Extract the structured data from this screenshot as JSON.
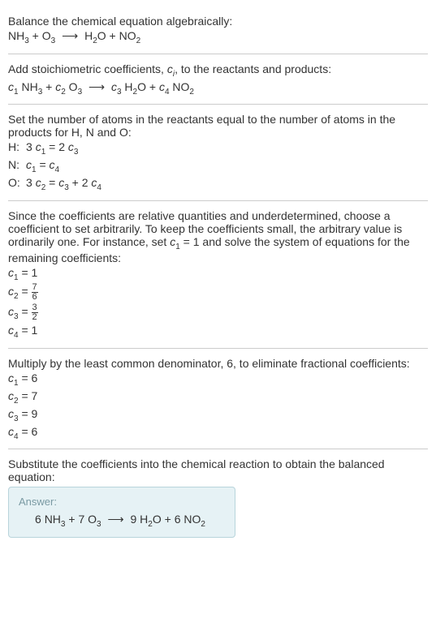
{
  "section1": {
    "text": "Balance the chemical equation algebraically:",
    "equation": {
      "lhs1_base": "NH",
      "lhs1_sub": "3",
      "plus": " + ",
      "lhs2_base": "O",
      "lhs2_sub": "3",
      "arrow": "⟶",
      "rhs1_base": "H",
      "rhs1_sub": "2",
      "rhs1_suffix": "O",
      "rhs2_base": "NO",
      "rhs2_sub": "2"
    }
  },
  "section2": {
    "text_pre": "Add stoichiometric coefficients, ",
    "ci_base": "c",
    "ci_sub": "i",
    "text_post": ", to the reactants and products:",
    "eq": {
      "c1_base": "c",
      "c1_sub": "1",
      "sp1": " NH",
      "sp1_sub": "3",
      "plus1": " + ",
      "c2_base": "c",
      "c2_sub": "2",
      "sp2": " O",
      "sp2_sub": "3",
      "arrow": "⟶",
      "c3_base": "c",
      "c3_sub": "3",
      "sp3": " H",
      "sp3_sub": "2",
      "sp3_suf": "O",
      "plus2": " + ",
      "c4_base": "c",
      "c4_sub": "4",
      "sp4": " NO",
      "sp4_sub": "2"
    }
  },
  "section3": {
    "text": "Set the number of atoms in the reactants equal to the number of atoms in the products for H, N and O:",
    "rows": [
      {
        "label": "H:",
        "lhs_coef": "3 ",
        "lhs_c": "c",
        "lhs_sub": "1",
        "eq": " = ",
        "rhs_coef": "2 ",
        "rhs_c": "c",
        "rhs_sub": "3",
        "extra": ""
      },
      {
        "label": "N:",
        "lhs_coef": "",
        "lhs_c": "c",
        "lhs_sub": "1",
        "eq": " = ",
        "rhs_coef": "",
        "rhs_c": "c",
        "rhs_sub": "4",
        "extra": ""
      },
      {
        "label": "O:",
        "lhs_coef": "3 ",
        "lhs_c": "c",
        "lhs_sub": "2",
        "eq": " = ",
        "rhs_coef": "",
        "rhs_c": "c",
        "rhs_sub": "3",
        "extra_pre": " + 2 ",
        "extra_c": "c",
        "extra_sub": "4"
      }
    ]
  },
  "section4": {
    "text_pre": "Since the coefficients are relative quantities and underdetermined, choose a coefficient to set arbitrarily. To keep the coefficients small, the arbitrary value is ordinarily one. For instance, set ",
    "c1_base": "c",
    "c1_sub": "1",
    "text_mid": " = 1 and solve the system of equations for the remaining coefficients:",
    "rows": [
      {
        "c": "c",
        "sub": "1",
        "eq": " = ",
        "val": "1",
        "is_frac": false
      },
      {
        "c": "c",
        "sub": "2",
        "eq": " = ",
        "num": "7",
        "den": "6",
        "is_frac": true
      },
      {
        "c": "c",
        "sub": "3",
        "eq": " = ",
        "num": "3",
        "den": "2",
        "is_frac": true
      },
      {
        "c": "c",
        "sub": "4",
        "eq": " = ",
        "val": "1",
        "is_frac": false
      }
    ]
  },
  "section5": {
    "text": "Multiply by the least common denominator, 6, to eliminate fractional coefficients:",
    "rows": [
      {
        "c": "c",
        "sub": "1",
        "eq": " = ",
        "val": "6"
      },
      {
        "c": "c",
        "sub": "2",
        "eq": " = ",
        "val": "7"
      },
      {
        "c": "c",
        "sub": "3",
        "eq": " = ",
        "val": "9"
      },
      {
        "c": "c",
        "sub": "4",
        "eq": " = ",
        "val": "6"
      }
    ]
  },
  "section6": {
    "text": "Substitute the coefficients into the chemical reaction to obtain the balanced equation:",
    "answer_label": "Answer:",
    "eq": {
      "c1": "6 ",
      "nh": "NH",
      "nh_sub": "3",
      "plus1": " + ",
      "c2": "7 ",
      "o": "O",
      "o_sub": "3",
      "arrow": "⟶",
      "c3": "9 ",
      "h": "H",
      "h_sub": "2",
      "h_suf": "O",
      "plus2": " + ",
      "c4": "6 ",
      "no": "NO",
      "no_sub": "2"
    }
  }
}
